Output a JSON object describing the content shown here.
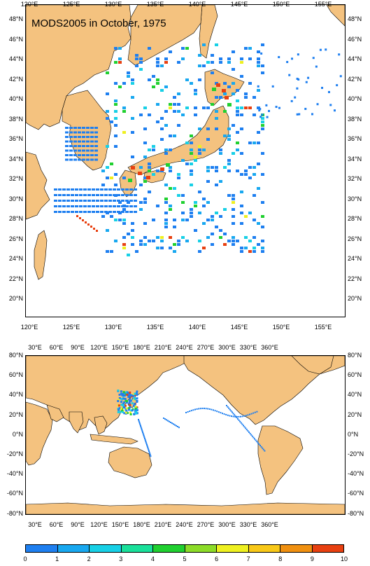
{
  "top_map": {
    "title": "MODS2005 in October, 1975",
    "lon_labels": [
      "120°E",
      "125°E",
      "130°E",
      "135°E",
      "140°E",
      "145°E",
      "150°E",
      "155°E"
    ],
    "lat_labels": [
      "48°N",
      "46°N",
      "44°N",
      "42°N",
      "40°N",
      "38°N",
      "36°N",
      "34°N",
      "32°N",
      "30°N",
      "28°N",
      "26°N",
      "24°N",
      "22°N",
      "20°N"
    ]
  },
  "world_map": {
    "lon_labels": [
      "30°E",
      "60°E",
      "90°E",
      "120°E",
      "150°E",
      "180°E",
      "210°E",
      "240°E",
      "270°E",
      "300°E",
      "330°E",
      "360°E"
    ],
    "lat_labels": [
      "80°N",
      "60°N",
      "40°N",
      "20°N",
      "0°N",
      "-20°N",
      "-40°N",
      "-60°N",
      "-80°N"
    ]
  },
  "colorbar": {
    "labels": [
      "0",
      "1",
      "2",
      "3",
      "4",
      "5",
      "6",
      "7",
      "8",
      "9",
      "10"
    ],
    "colors": [
      "#1f4fd8",
      "#1e7ff0",
      "#18a8f0",
      "#17d0e6",
      "#19e09a",
      "#20d030",
      "#8cdc28",
      "#eef020",
      "#f8c818",
      "#f09010",
      "#e84010"
    ]
  },
  "colors": {
    "land": "#f4c27f",
    "ocean": "#ffffff",
    "coast": "#000000"
  }
}
